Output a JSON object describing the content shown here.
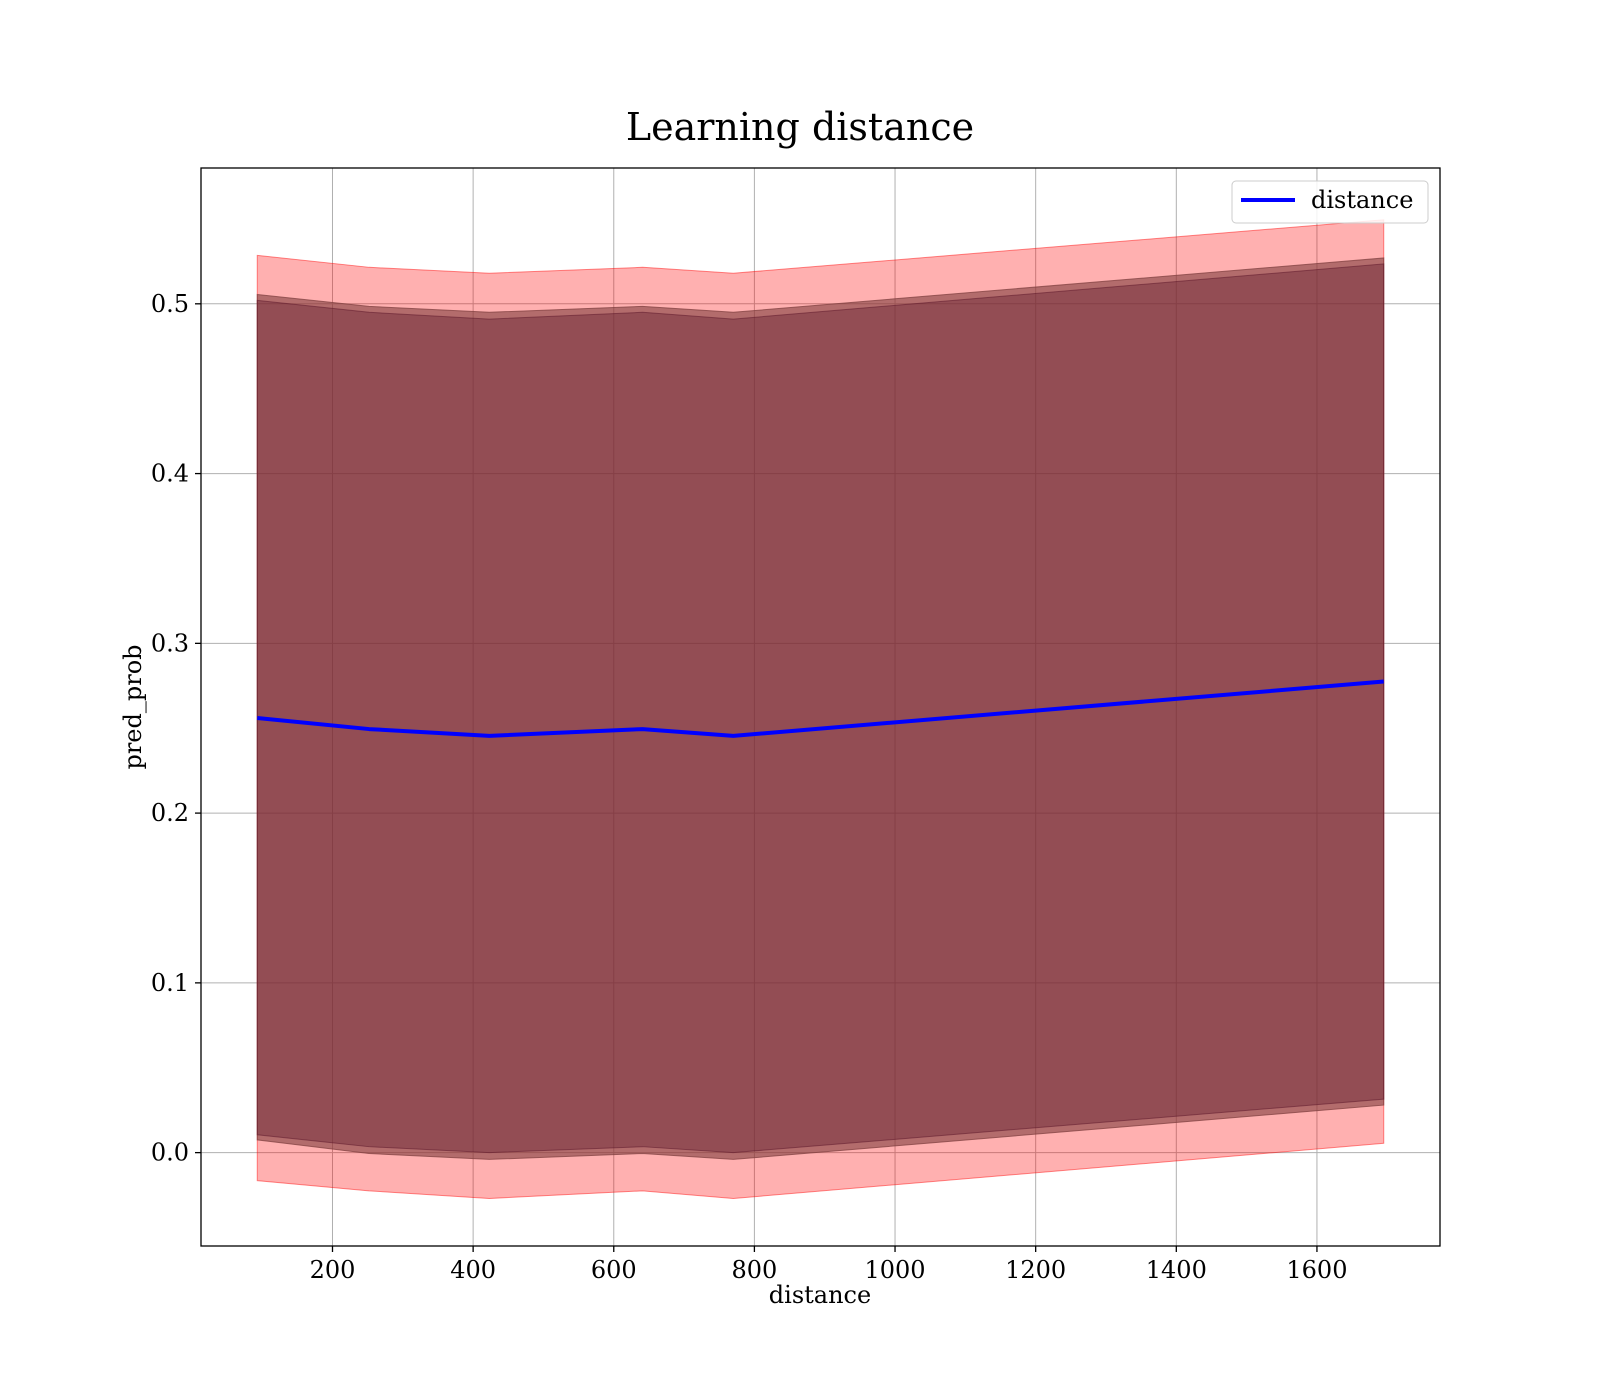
{
  "chart_data": {
    "type": "line",
    "title": "Learning distance",
    "xlabel": "distance",
    "ylabel": "pred_prob",
    "xlim": [
      13,
      1775
    ],
    "ylim": [
      -0.055,
      0.58
    ],
    "x_ticks": [
      200,
      400,
      600,
      800,
      1000,
      1200,
      1400,
      1600
    ],
    "x_tick_labels": [
      "200",
      "400",
      "600",
      "800",
      "1000",
      "1200",
      "1400",
      "1600"
    ],
    "y_ticks": [
      0.0,
      0.1,
      0.2,
      0.3,
      0.4,
      0.5
    ],
    "y_tick_labels": [
      "0.0",
      "0.1",
      "0.2",
      "0.3",
      "0.4",
      "0.5"
    ],
    "grid": true,
    "legend_position": "top-right",
    "legend": [
      "distance"
    ],
    "x": [
      93,
      252,
      423,
      641,
      770,
      1695
    ],
    "series": [
      {
        "name": "distance",
        "color": "#0000ff",
        "values": [
          0.256,
          0.2495,
          0.2455,
          0.2495,
          0.2455,
          0.2775
        ]
      }
    ],
    "bands": [
      {
        "color": "#ff0000",
        "opacity": 0.31,
        "upper": [
          0.5285,
          0.5215,
          0.518,
          0.5215,
          0.518,
          0.5495
        ],
        "lower": [
          -0.0165,
          -0.0225,
          -0.027,
          -0.0225,
          -0.027,
          0.0055
        ]
      },
      {
        "color": "#804040",
        "opacity": 0.6,
        "upper": [
          0.5055,
          0.4985,
          0.495,
          0.4985,
          0.495,
          0.527
        ],
        "lower": [
          0.0075,
          -0.0005,
          -0.004,
          -0.0005,
          -0.004,
          0.028
        ]
      },
      {
        "color": "#5a1428",
        "opacity": 0.35,
        "upper": [
          0.502,
          0.495,
          0.491,
          0.495,
          0.491,
          0.5235
        ],
        "lower": [
          0.0105,
          0.0035,
          0.0,
          0.0035,
          0.0,
          0.0315
        ]
      }
    ]
  }
}
